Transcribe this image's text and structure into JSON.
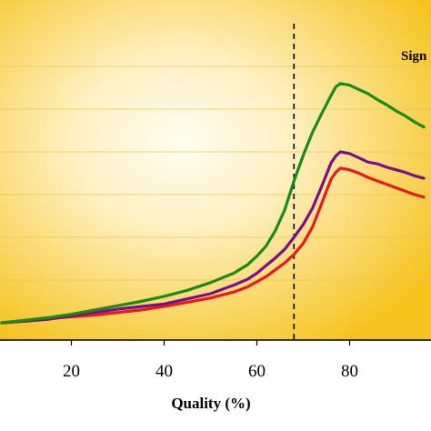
{
  "chart_data": {
    "type": "line",
    "xlabel": "Quality (%)",
    "ylabel": "",
    "xlim": [
      5,
      97
    ],
    "ylim": [
      -2,
      31
    ],
    "x_ticks": [
      20,
      40,
      60,
      80
    ],
    "x_tick_labels": [
      "20",
      "40",
      "60",
      "80"
    ],
    "y_gridlines": [
      5,
      10,
      15,
      20,
      25,
      30
    ],
    "grid": true,
    "plot_background": {
      "style": "radial-gradient",
      "center_color": "#fffdf2",
      "edge_color": "#f5c31e"
    },
    "threshold_line": {
      "x": 68,
      "style": "dashed",
      "color": "#000000"
    },
    "legend_text": "Sign",
    "series": [
      {
        "color": "#1a8a1a",
        "points": [
          [
            5,
            0.0
          ],
          [
            10,
            0.3
          ],
          [
            15,
            0.6
          ],
          [
            20,
            1.0
          ],
          [
            25,
            1.5
          ],
          [
            30,
            2.0
          ],
          [
            35,
            2.5
          ],
          [
            40,
            3.1
          ],
          [
            45,
            3.8
          ],
          [
            50,
            4.7
          ],
          [
            55,
            5.8
          ],
          [
            58,
            6.8
          ],
          [
            60,
            7.8
          ],
          [
            62,
            9.0
          ],
          [
            64,
            10.8
          ],
          [
            66,
            13.2
          ],
          [
            68,
            16.6
          ],
          [
            70,
            19.6
          ],
          [
            72,
            22.3
          ],
          [
            74,
            24.5
          ],
          [
            76,
            26.6
          ],
          [
            77,
            27.6
          ],
          [
            78,
            28.0
          ],
          [
            80,
            27.8
          ],
          [
            82,
            27.3
          ],
          [
            84,
            26.8
          ],
          [
            86,
            26.1
          ],
          [
            88,
            25.5
          ],
          [
            90,
            24.8
          ],
          [
            92,
            24.2
          ],
          [
            94,
            23.5
          ],
          [
            96,
            22.9
          ]
        ]
      },
      {
        "color": "#7a0f8a",
        "points": [
          [
            5,
            0.0
          ],
          [
            10,
            0.2
          ],
          [
            15,
            0.4
          ],
          [
            20,
            0.8
          ],
          [
            25,
            1.2
          ],
          [
            30,
            1.6
          ],
          [
            35,
            1.9
          ],
          [
            40,
            2.2
          ],
          [
            45,
            2.8
          ],
          [
            50,
            3.4
          ],
          [
            55,
            4.4
          ],
          [
            58,
            5.1
          ],
          [
            60,
            5.8
          ],
          [
            62,
            6.7
          ],
          [
            64,
            7.6
          ],
          [
            66,
            8.6
          ],
          [
            68,
            10.0
          ],
          [
            70,
            11.5
          ],
          [
            72,
            13.4
          ],
          [
            74,
            16.0
          ],
          [
            76,
            18.7
          ],
          [
            77,
            19.5
          ],
          [
            78,
            20.0
          ],
          [
            80,
            19.8
          ],
          [
            82,
            19.3
          ],
          [
            84,
            18.8
          ],
          [
            86,
            18.6
          ],
          [
            88,
            18.2
          ],
          [
            90,
            17.9
          ],
          [
            92,
            17.6
          ],
          [
            94,
            17.2
          ],
          [
            96,
            16.9
          ]
        ]
      },
      {
        "color": "#e81a1a",
        "points": [
          [
            5,
            0.0
          ],
          [
            10,
            0.2
          ],
          [
            15,
            0.5
          ],
          [
            20,
            0.7
          ],
          [
            25,
            0.9
          ],
          [
            30,
            1.2
          ],
          [
            35,
            1.5
          ],
          [
            40,
            1.9
          ],
          [
            45,
            2.4
          ],
          [
            50,
            2.9
          ],
          [
            55,
            3.6
          ],
          [
            58,
            4.2
          ],
          [
            60,
            4.8
          ],
          [
            62,
            5.4
          ],
          [
            64,
            6.2
          ],
          [
            66,
            7.0
          ],
          [
            68,
            8.0
          ],
          [
            70,
            9.3
          ],
          [
            72,
            11.2
          ],
          [
            74,
            14.0
          ],
          [
            76,
            16.8
          ],
          [
            77,
            17.6
          ],
          [
            78,
            18.1
          ],
          [
            80,
            17.9
          ],
          [
            82,
            17.5
          ],
          [
            84,
            17.0
          ],
          [
            86,
            16.6
          ],
          [
            88,
            16.2
          ],
          [
            90,
            15.8
          ],
          [
            92,
            15.4
          ],
          [
            94,
            15.0
          ],
          [
            96,
            14.7
          ]
        ]
      }
    ]
  }
}
